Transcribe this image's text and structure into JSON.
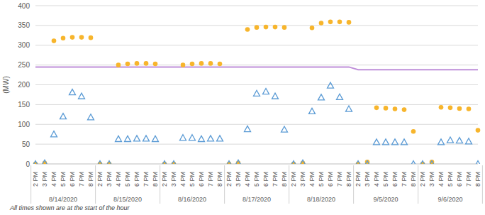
{
  "chart_data": {
    "type": "scatter",
    "y_label": "(MW)",
    "footnote": "All times shown are at the start of the hour",
    "categories": [
      "2 PM",
      "3 PM",
      "4 PM",
      "5 PM",
      "6 PM",
      "7 PM",
      "8 PM",
      "2 PM",
      "3 PM",
      "4 PM",
      "5 PM",
      "6 PM",
      "7 PM",
      "8 PM",
      "2 PM",
      "3 PM",
      "4 PM",
      "5 PM",
      "6 PM",
      "7 PM",
      "8 PM",
      "2 PM",
      "3 PM",
      "4 PM",
      "5 PM",
      "6 PM",
      "7 PM",
      "8 PM",
      "2 PM",
      "3 PM",
      "4 PM",
      "5 PM",
      "6 PM",
      "7 PM",
      "8 PM",
      "2 PM",
      "3 PM",
      "4 PM",
      "5 PM",
      "6 PM",
      "7 PM",
      "8 PM",
      "2 PM",
      "3 PM",
      "4 PM",
      "5 PM",
      "6 PM",
      "7 PM",
      "8 PM"
    ],
    "category_groups": [
      "8/14/2020",
      "8/15/2020",
      "8/16/2020",
      "8/17/2020",
      "8/18/2020",
      "9/5/2020",
      "9/6/2020"
    ],
    "series": [
      {
        "type": "scatter",
        "marker": "circle",
        "color": "#f7b52c",
        "values": [
          0,
          2,
          311,
          318,
          320,
          320,
          319,
          0,
          0,
          250,
          253,
          254,
          254,
          253,
          0,
          0,
          250,
          253,
          254,
          254,
          253,
          0,
          2,
          340,
          345,
          346,
          346,
          345,
          0,
          2,
          344,
          356,
          359,
          359,
          358,
          0,
          5,
          142,
          141,
          139,
          137,
          82,
          0,
          5,
          143,
          142,
          140,
          139,
          85
        ]
      },
      {
        "type": "scatter",
        "marker": "triangle",
        "color": "#5b9bd5",
        "values": [
          0,
          2,
          75,
          120,
          181,
          171,
          118,
          0,
          0,
          63,
          63,
          64,
          64,
          63,
          0,
          0,
          66,
          66,
          63,
          64,
          64,
          0,
          2,
          88,
          178,
          183,
          171,
          87,
          0,
          2,
          133,
          168,
          198,
          169,
          139,
          0,
          0,
          55,
          55,
          55,
          55,
          0,
          0,
          0,
          55,
          60,
          59,
          57,
          0
        ]
      },
      {
        "type": "line",
        "line_style": "solid",
        "color": "#bf8fd9",
        "values": [
          245,
          245,
          245,
          245,
          245,
          245,
          245,
          245,
          245,
          245,
          245,
          245,
          245,
          245,
          245,
          245,
          245,
          245,
          245,
          245,
          245,
          245,
          245,
          245,
          245,
          245,
          245,
          245,
          245,
          245,
          245,
          245,
          245,
          245,
          245,
          238,
          238,
          238,
          238,
          238,
          238,
          238,
          238,
          238,
          238,
          238,
          238,
          238,
          238
        ]
      }
    ],
    "ylim": [
      0,
      400
    ],
    "yticks": [
      0,
      50,
      100,
      150,
      200,
      250,
      300,
      350,
      400
    ],
    "grid": true
  }
}
